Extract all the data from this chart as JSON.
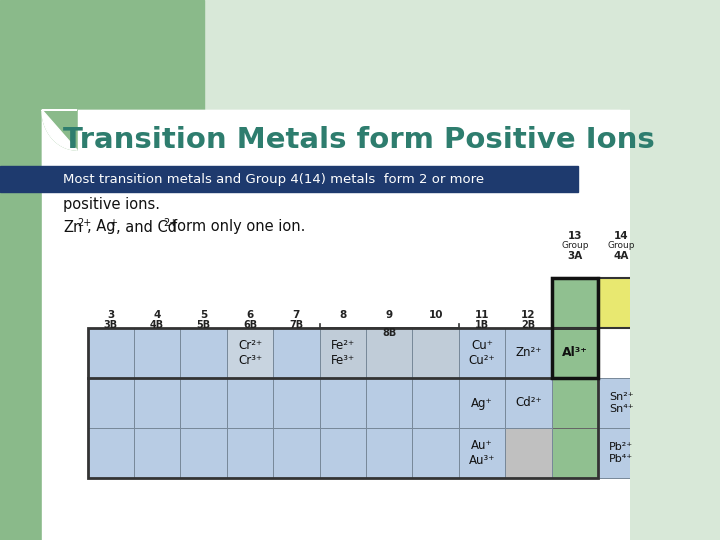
{
  "title": "Transition Metals form Positive Ions",
  "title_color": "#2e7d6e",
  "bg_color": "#ffffff",
  "left_bar_color": "#8aba8a",
  "slide_bg": "#d8e8d8",
  "highlight_bar_color": "#1e3a6e",
  "body_text1_line1": "Most transition metals and Group 4(14) metals  form 2 or more",
  "body_text1_line2": "positive ions.",
  "body_text2": "Zn²⁺, Ag⁺, and Cd²⁺form only one ion.",
  "table": {
    "col_nums": [
      "3",
      "4",
      "5",
      "6",
      "7",
      "8",
      "9",
      "10",
      "11",
      "12"
    ],
    "col_letters": [
      "3B",
      "4B",
      "5B",
      "6B",
      "7B",
      "",
      "",
      "",
      "1B",
      "2B"
    ],
    "num_data_cols": 10,
    "num_rows": 3,
    "cell_colors_row0": [
      "#b8cce4",
      "#b8cce4",
      "#b8cce4",
      "#c8d4e0",
      "#b8cce4",
      "#c0ccd8",
      "#c0ccd8",
      "#c0ccd8",
      "#b8cce4",
      "#b8cce4"
    ],
    "cell_colors_row1": [
      "#b8cce4",
      "#b8cce4",
      "#b8cce4",
      "#b8cce4",
      "#b8cce4",
      "#b8cce4",
      "#b8cce4",
      "#b8cce4",
      "#b8cce4",
      "#b8cce4"
    ],
    "cell_colors_row2": [
      "#b8cce4",
      "#b8cce4",
      "#b8cce4",
      "#b8cce4",
      "#b8cce4",
      "#b8cce4",
      "#b8cce4",
      "#b8cce4",
      "#b8cce4",
      "#c0c0c0"
    ],
    "cell_texts_row0": [
      "",
      "",
      "",
      "Cr²⁺\nCr³⁺",
      "",
      "Fe²⁺\nFe³⁺",
      "",
      "",
      "Cu⁺\nCu²⁺",
      "Zn²⁺"
    ],
    "cell_texts_row1": [
      "",
      "",
      "",
      "",
      "",
      "",
      "",
      "",
      "Ag⁺",
      "Cd²⁺"
    ],
    "cell_texts_row2": [
      "",
      "",
      "",
      "",
      "",
      "",
      "",
      "",
      "Au⁺\nAu³⁺",
      ""
    ],
    "group13_color": "#90c090",
    "group14_color": "#e8e870",
    "al3_color": "#90c090",
    "sn_text": "Sn²⁺\nSn⁴⁺",
    "pb_text": "Pb²⁺\nPb⁴⁺"
  }
}
